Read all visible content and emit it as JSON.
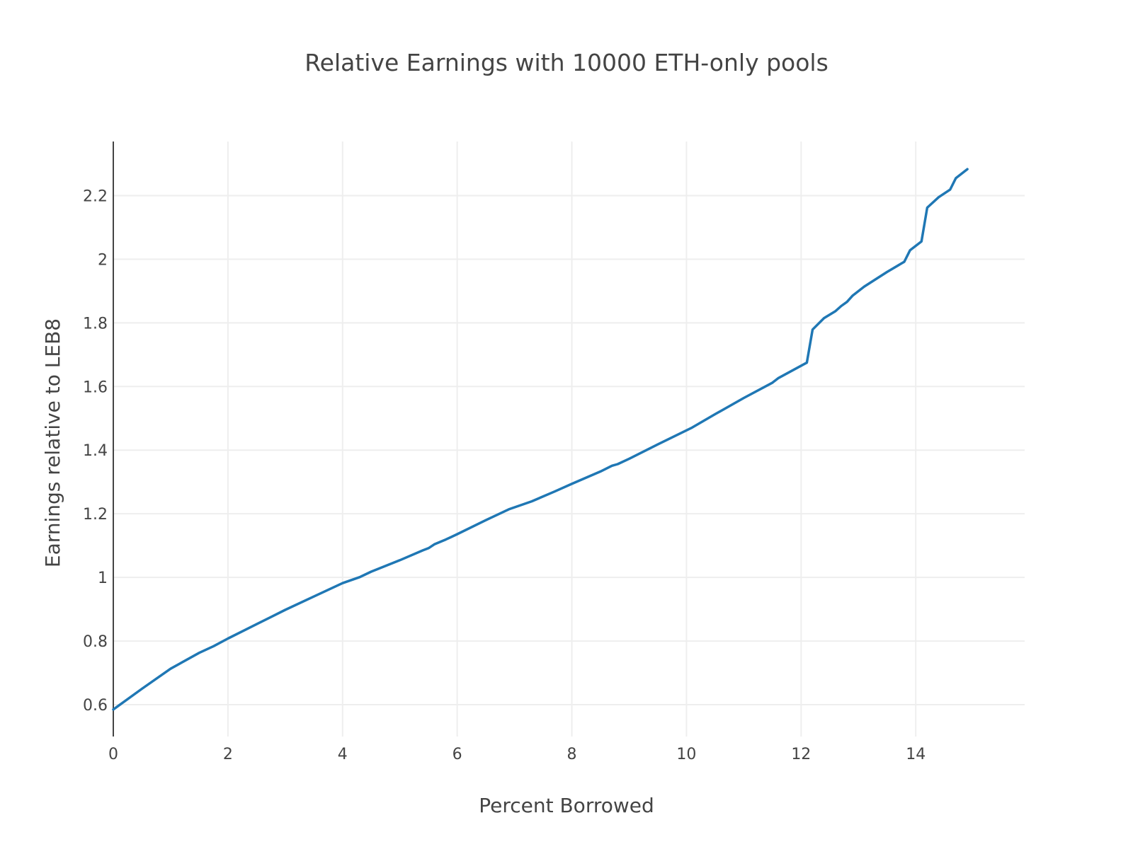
{
  "chart_data": {
    "type": "line",
    "title": "Relative Earnings with 10000 ETH-only pools",
    "xlabel": "Percent Borrowed",
    "ylabel": "Earnings relative to LEB8",
    "xlim": [
      0,
      15.9
    ],
    "ylim": [
      0.5,
      2.37
    ],
    "x_ticks": [
      0,
      2,
      4,
      6,
      8,
      10,
      12,
      14
    ],
    "x_tick_labels": [
      "0",
      "2",
      "4",
      "6",
      "8",
      "10",
      "12",
      "14"
    ],
    "y_ticks": [
      0.6,
      0.8,
      1.0,
      1.2,
      1.4,
      1.6,
      1.8,
      2.0,
      2.2
    ],
    "y_tick_labels": [
      "0.6",
      "0.8",
      "1",
      "1.2",
      "1.4",
      "1.6",
      "1.8",
      "2",
      "2.2"
    ],
    "grid": true,
    "legend": "none",
    "colors": {
      "series": "#1f77b4",
      "grid": "#eeeeee",
      "axis": "#444444",
      "text": "#444444"
    },
    "series": [
      {
        "x": [
          0,
          0.5,
          1.0,
          1.5,
          1.75,
          2.0,
          2.5,
          3.0,
          3.5,
          4.0,
          4.3,
          4.5,
          5.0,
          5.4,
          5.5,
          5.6,
          5.8,
          6.0,
          6.5,
          6.9,
          7.3,
          7.7,
          8.0,
          8.5,
          8.7,
          8.8,
          9.0,
          9.5,
          10.1,
          10.5,
          11.0,
          11.5,
          11.6,
          12.1,
          12.2,
          12.4,
          12.6,
          12.7,
          12.8,
          12.9,
          13.1,
          13.5,
          13.8,
          13.9,
          14.1,
          14.2,
          14.4,
          14.6,
          14.7,
          14.9
        ],
        "y": [
          0.585,
          0.65,
          0.713,
          0.763,
          0.784,
          0.808,
          0.853,
          0.898,
          0.94,
          0.982,
          1.001,
          1.018,
          1.054,
          1.085,
          1.092,
          1.104,
          1.119,
          1.136,
          1.18,
          1.214,
          1.239,
          1.27,
          1.294,
          1.333,
          1.351,
          1.356,
          1.373,
          1.418,
          1.471,
          1.513,
          1.564,
          1.612,
          1.626,
          1.675,
          1.779,
          1.815,
          1.837,
          1.853,
          1.866,
          1.886,
          1.914,
          1.96,
          1.992,
          2.028,
          2.056,
          2.162,
          2.195,
          2.219,
          2.255,
          2.283
        ]
      }
    ]
  }
}
